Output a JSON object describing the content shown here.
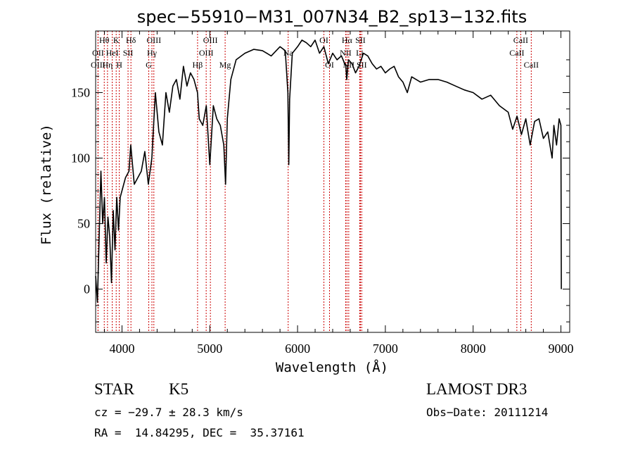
{
  "chart_data": {
    "type": "line",
    "title": "spec−55910−M31_007N34_B2_sp13−132.fits",
    "xlabel": "Wavelength (Å)",
    "ylabel": "Flux (relative)",
    "xlim": [
      3700,
      9100
    ],
    "ylim": [
      -33,
      197
    ],
    "x_ticks": [
      4000,
      5000,
      6000,
      7000,
      8000,
      9000
    ],
    "y_ticks": [
      0,
      50,
      100,
      150
    ],
    "grid": false,
    "series": [
      {
        "name": "spectrum",
        "x": [
          3700,
          3720,
          3740,
          3760,
          3780,
          3800,
          3820,
          3840,
          3860,
          3880,
          3900,
          3920,
          3940,
          3960,
          3980,
          4000,
          4040,
          4080,
          4100,
          4140,
          4180,
          4220,
          4260,
          4300,
          4340,
          4380,
          4420,
          4460,
          4500,
          4540,
          4580,
          4620,
          4660,
          4700,
          4740,
          4780,
          4820,
          4860,
          4880,
          4920,
          4960,
          5000,
          5040,
          5080,
          5120,
          5160,
          5180,
          5200,
          5240,
          5300,
          5400,
          5500,
          5600,
          5700,
          5800,
          5860,
          5890,
          5900,
          5910,
          5940,
          6000,
          6050,
          6100,
          6150,
          6200,
          6250,
          6300,
          6350,
          6400,
          6450,
          6500,
          6550,
          6560,
          6580,
          6620,
          6660,
          6700,
          6750,
          6800,
          6850,
          6900,
          6950,
          7000,
          7050,
          7100,
          7150,
          7200,
          7250,
          7300,
          7400,
          7500,
          7600,
          7700,
          7800,
          7900,
          8000,
          8100,
          8200,
          8300,
          8400,
          8450,
          8500,
          8550,
          8600,
          8650,
          8700,
          8750,
          8800,
          8850,
          8900,
          8920,
          8950,
          8980,
          9000,
          9005
        ],
        "y": [
          10,
          -10,
          40,
          90,
          50,
          70,
          20,
          55,
          40,
          5,
          60,
          30,
          70,
          45,
          70,
          75,
          85,
          90,
          110,
          80,
          85,
          90,
          105,
          80,
          100,
          150,
          120,
          110,
          150,
          135,
          155,
          160,
          145,
          170,
          155,
          165,
          160,
          150,
          130,
          125,
          140,
          95,
          140,
          130,
          125,
          110,
          80,
          130,
          160,
          175,
          180,
          183,
          182,
          178,
          185,
          182,
          150,
          95,
          145,
          180,
          185,
          190,
          188,
          185,
          190,
          180,
          185,
          172,
          180,
          175,
          178,
          170,
          160,
          175,
          172,
          165,
          170,
          180,
          178,
          172,
          168,
          170,
          165,
          168,
          170,
          162,
          158,
          150,
          162,
          158,
          160,
          160,
          158,
          155,
          152,
          150,
          145,
          148,
          140,
          135,
          122,
          132,
          118,
          130,
          110,
          128,
          130,
          115,
          120,
          100,
          125,
          110,
          130,
          125,
          0
        ]
      }
    ],
    "line_markers": [
      {
        "label": "Hθ",
        "wl": 3798,
        "row": 1
      },
      {
        "label": "K",
        "wl": 3934,
        "row": 1
      },
      {
        "label": "Hδ",
        "wl": 4102,
        "row": 1
      },
      {
        "label": "OII",
        "wl": 3727,
        "row": 2
      },
      {
        "label": "HeI",
        "wl": 3889,
        "row": 2
      },
      {
        "label": "SII",
        "wl": 4069,
        "row": 2
      },
      {
        "label": "OIII",
        "wl": 3727,
        "row": 3
      },
      {
        "label": "Hη",
        "wl": 3835,
        "row": 3
      },
      {
        "label": "H",
        "wl": 3969,
        "row": 3
      },
      {
        "label": "OIII",
        "wl": 4363,
        "row": 1
      },
      {
        "label": "Hγ",
        "wl": 4341,
        "row": 2
      },
      {
        "label": "G",
        "wl": 4305,
        "row": 3
      },
      {
        "label": "Hβ",
        "wl": 4861,
        "row": 3
      },
      {
        "label": "OIII",
        "wl": 5007,
        "row": 1
      },
      {
        "label": "OIII",
        "wl": 4959,
        "row": 2
      },
      {
        "label": "Mg",
        "wl": 5175,
        "row": 3
      },
      {
        "label": "Na",
        "wl": 5893,
        "row": 2
      },
      {
        "label": "OI",
        "wl": 6300,
        "row": 1
      },
      {
        "label": "OI",
        "wl": 6364,
        "row": 3
      },
      {
        "label": "Hα",
        "wl": 6563,
        "row": 1
      },
      {
        "label": "NII",
        "wl": 6548,
        "row": 2
      },
      {
        "label": "NII",
        "wl": 6583,
        "row": 3
      },
      {
        "label": "SII",
        "wl": 6716,
        "row": 1
      },
      {
        "label": "SII",
        "wl": 6731,
        "row": 3
      },
      {
        "label": "Li",
        "wl": 6708,
        "row": 2
      },
      {
        "label": "CaII",
        "wl": 8542,
        "row": 1
      },
      {
        "label": "CaII",
        "wl": 8498,
        "row": 2
      },
      {
        "label": "CaII",
        "wl": 8662,
        "row": 3
      }
    ],
    "marker_color": "#cc0000",
    "line_color": "#000000"
  },
  "info": {
    "class": "STAR",
    "subclass": "K5",
    "cz": "cz = −29.7 ± 28.3 km/s",
    "coords": "RA =  14.84295, DEC =  35.37161",
    "survey": "LAMOST DR3",
    "obs_date": "Obs−Date: 20111214"
  }
}
